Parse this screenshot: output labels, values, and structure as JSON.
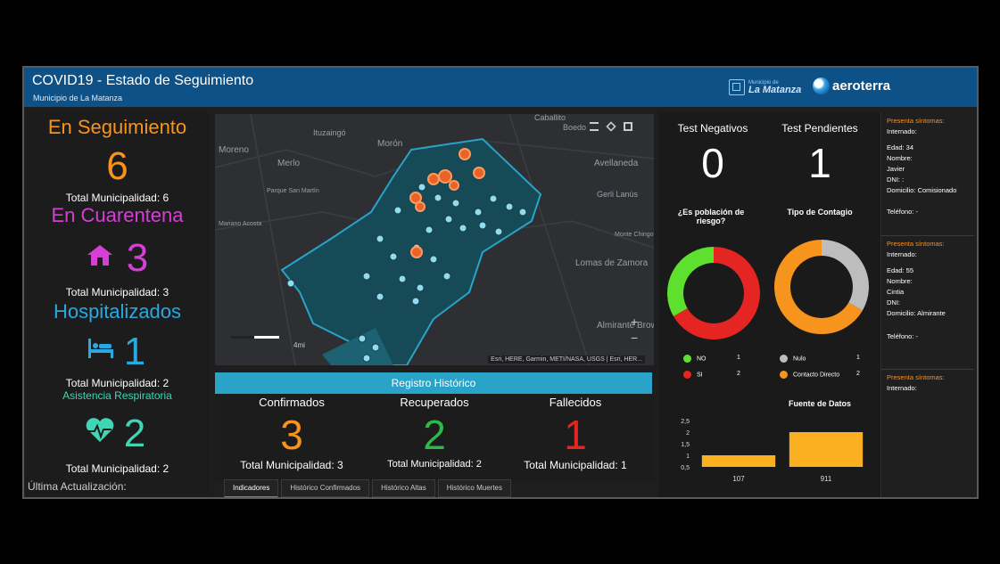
{
  "header": {
    "title": "COVID19 - Estado de Seguimiento",
    "subtitle": "Municipio de La Matanza",
    "logo1_small": "Municipio de",
    "logo1_big": "La Matanza",
    "logo2": "aeroterra"
  },
  "left": {
    "seguimiento": {
      "title": "En Seguimiento",
      "value": "6",
      "total": "Total Municipalidad: 6",
      "color": "#f7941d"
    },
    "cuarentena": {
      "title": "En Cuarentena",
      "value": "3",
      "total": "Total Municipalidad: 3",
      "color": "#d63fd6",
      "icon": "house-icon"
    },
    "hospitalizados": {
      "title": "Hospitalizados",
      "value": "1",
      "total": "Total Municipalidad: 2",
      "color": "#2aa8e0",
      "icon": "bed-icon"
    },
    "respiratoria": {
      "title": "Asistencia Respiratoria",
      "value": "2",
      "total": "Total Municipalidad: 2",
      "color": "#3fd6b5",
      "icon": "heartbeat-icon"
    },
    "last_update": "Última Actualización:"
  },
  "map": {
    "places": [
      "Caballito",
      "Boedo",
      "Ituzaingó",
      "Morón",
      "Moreno",
      "Merlo",
      "Parque San Martín",
      "Mariano Acosta",
      "Avellaneda",
      "Gerli Lanús",
      "Monte Chingolo",
      "Lomas de Zamora",
      "Almirante Brown"
    ],
    "attribution": "Esri, HERE, Garmin, METI/NASA, USGS | Esri, HER...",
    "scale_label": "4mi",
    "zoom_in": "+",
    "zoom_out": "−"
  },
  "registro": {
    "title": "Registro Histórico",
    "cols": [
      {
        "label": "Confirmados",
        "value": "3",
        "total": "Total Municipalidad: 3",
        "color": "#f7941d"
      },
      {
        "label": "Recuperados",
        "value": "2",
        "total": "Total Municipalidad: 2",
        "color": "#2db84a"
      },
      {
        "label": "Fallecidos",
        "value": "1",
        "total": "Total Municipalidad: 1",
        "color": "#e52521"
      }
    ]
  },
  "tabs": [
    "Indicadores",
    "Histórico Confirmados",
    "Histórico Altas",
    "Histórico Muertes"
  ],
  "right": {
    "neg_label": "Test Negativos",
    "neg_value": "0",
    "pend_label": "Test Pendientes",
    "pend_value": "1",
    "riesgo_title": "¿Es población de riesgo?",
    "contagio_title": "Tipo de Contagio",
    "riesgo_legend": [
      {
        "label": "NO",
        "value": "1",
        "color": "#5ee02e"
      },
      {
        "label": "SI",
        "value": "2",
        "color": "#e52521"
      }
    ],
    "contagio_legend": [
      {
        "label": "Nulo",
        "value": "1",
        "color": "#bdbdbd"
      },
      {
        "label": "Contacto Directo",
        "value": "2",
        "color": "#f7941d"
      }
    ],
    "fuente_title": "Fuente de Datos"
  },
  "chart_data": [
    {
      "type": "pie",
      "title": "¿Es población de riesgo?",
      "labels": [
        "NO",
        "SI"
      ],
      "values": [
        1,
        2
      ],
      "colors": [
        "#5ee02e",
        "#e52521"
      ]
    },
    {
      "type": "pie",
      "title": "Tipo de Contagio",
      "labels": [
        "Nulo",
        "Contacto Directo"
      ],
      "values": [
        1,
        2
      ],
      "colors": [
        "#bdbdbd",
        "#f7941d"
      ]
    },
    {
      "type": "bar",
      "title": "Fuente de Datos",
      "categories": [
        "107",
        "911"
      ],
      "values": [
        1,
        2
      ],
      "ylim": [
        0.5,
        2.5
      ],
      "yticks": [
        "2,5",
        "2",
        "1,5",
        "1",
        "0,5"
      ],
      "color": "#fbb021"
    }
  ],
  "cases": [
    {
      "sintomas": "Presenta síntomas:",
      "internado": "Internado:",
      "edad": "Edad: 34",
      "nombre": "Nombre:",
      "nombre_val": "Javier",
      "dni": "DNI: :",
      "domicilio": "Domicilio: Comisionado",
      "telefono": "Teléfono: -"
    },
    {
      "sintomas": "Presenta síntomas:",
      "internado": "Internado:",
      "edad": "Edad: 55",
      "nombre": "Nombre:",
      "nombre_val": "Cintia",
      "dni": "DNI:",
      "domicilio": "Domicilio: Almirante",
      "telefono": "Teléfono: -"
    },
    {
      "sintomas": "Presenta síntomas:",
      "internado": "Internado:"
    }
  ]
}
